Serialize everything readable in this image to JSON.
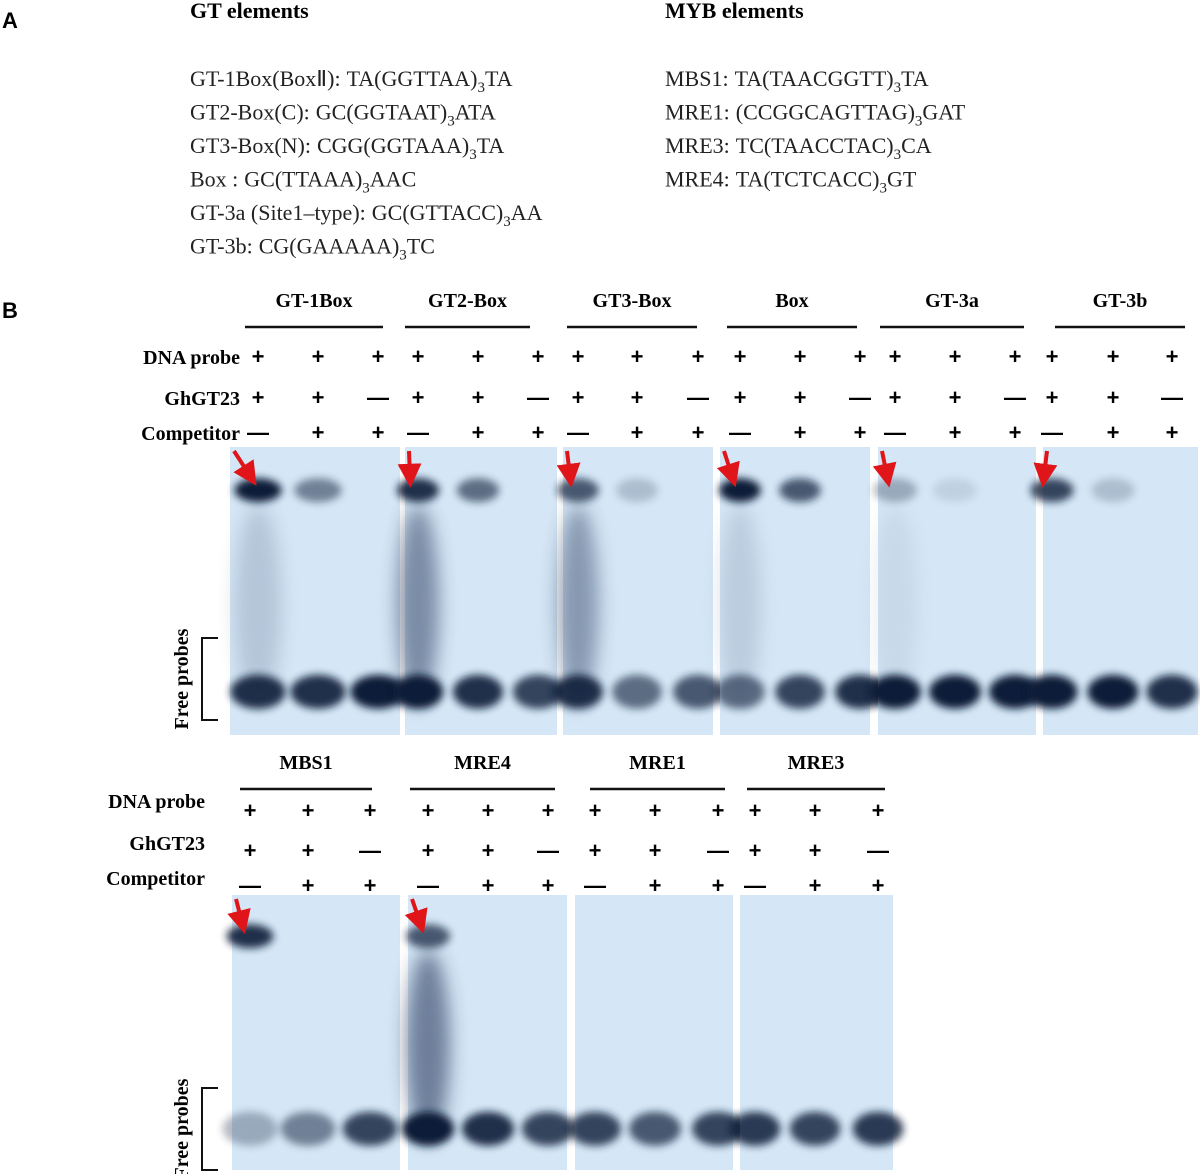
{
  "panel_a": {
    "label": "A",
    "gt_title": "GT elements",
    "gt_items": [
      {
        "name": "GT-1Box(BoxⅡ):",
        "motif": "TA(GGTTAA)",
        "count": "3",
        "tail": "TA"
      },
      {
        "name": "GT2-Box(C):",
        "motif": "GC(GGTAAT)",
        "count": "3",
        "tail": "ATA"
      },
      {
        "name": "GT3-Box(N):",
        "motif": "CGG(GGTAAA)",
        "count": "3",
        "tail": "TA"
      },
      {
        "name": "Box :",
        "motif": "GC(TTAAA)",
        "count": "3",
        "tail": "AAC"
      },
      {
        "name": "GT-3a (Site1–type):",
        "motif": "GC(GTTACC)",
        "count": "3",
        "tail": "AA"
      },
      {
        "name": "GT-3b:",
        "motif": "CG(GAAAAA)",
        "count": "3",
        "tail": "TC"
      }
    ],
    "myb_title": "MYB elements",
    "myb_items": [
      {
        "name": "MBS1:",
        "motif": "TA(TAACGGTT)",
        "count": "3",
        "tail": "TA"
      },
      {
        "name": "MRE1:",
        "motif": "(CCGGCAGTTAG)",
        "count": "3",
        "tail": "GAT"
      },
      {
        "name": "MRE3:",
        "motif": "TC(TAACCTAC)",
        "count": "3",
        "tail": "CA"
      },
      {
        "name": "MRE4:",
        "motif": "TA(TCTCACC)",
        "count": "3",
        "tail": "GT"
      }
    ]
  },
  "panel_b": {
    "label": "B",
    "top_row": {
      "row_labels": [
        "DNA probe",
        "GhGT23",
        "Competitor"
      ],
      "free_probes": "Free probes",
      "gels": [
        {
          "name": "GT-1Box",
          "signs": [
            [
              "+",
              "+",
              "+"
            ],
            [
              "+",
              "+",
              "—"
            ],
            [
              "—",
              "+",
              "+"
            ]
          ]
        },
        {
          "name": "GT2-Box",
          "signs": [
            [
              "+",
              "+",
              "+"
            ],
            [
              "+",
              "+",
              "—"
            ],
            [
              "—",
              "+",
              "+"
            ]
          ]
        },
        {
          "name": "GT3-Box",
          "signs": [
            [
              "+",
              "+",
              "+"
            ],
            [
              "+",
              "+",
              "—"
            ],
            [
              "—",
              "+",
              "+"
            ]
          ]
        },
        {
          "name": "Box",
          "signs": [
            [
              "+",
              "+",
              "+"
            ],
            [
              "+",
              "+",
              "—"
            ],
            [
              "—",
              "+",
              "+"
            ]
          ]
        },
        {
          "name": "GT-3a",
          "signs": [
            [
              "+",
              "+",
              "+"
            ],
            [
              "+",
              "+",
              "—"
            ],
            [
              "—",
              "+",
              "+"
            ]
          ]
        },
        {
          "name": "GT-3b",
          "signs": [
            [
              "+",
              "+",
              "+"
            ],
            [
              "+",
              "+",
              "—"
            ],
            [
              "—",
              "+",
              "+"
            ]
          ]
        }
      ]
    },
    "bottom_row": {
      "row_labels": [
        "DNA probe",
        "GhGT23",
        "Competitor"
      ],
      "free_probes": "Free probes",
      "gels": [
        {
          "name": "MBS1",
          "signs": [
            [
              "+",
              "+",
              "+"
            ],
            [
              "+",
              "+",
              "—"
            ],
            [
              "—",
              "+",
              "+"
            ]
          ]
        },
        {
          "name": "MRE4",
          "signs": [
            [
              "+",
              "+",
              "+"
            ],
            [
              "+",
              "+",
              "—"
            ],
            [
              "—",
              "+",
              "+"
            ]
          ]
        },
        {
          "name": "MRE1",
          "signs": [
            [
              "+",
              "+",
              "+"
            ],
            [
              "+",
              "+",
              "—"
            ],
            [
              "—",
              "+",
              "+"
            ]
          ]
        },
        {
          "name": "MRE3",
          "signs": [
            [
              "+",
              "+",
              "+"
            ],
            [
              "+",
              "+",
              "—"
            ],
            [
              "—",
              "+",
              "+"
            ]
          ]
        }
      ]
    }
  }
}
